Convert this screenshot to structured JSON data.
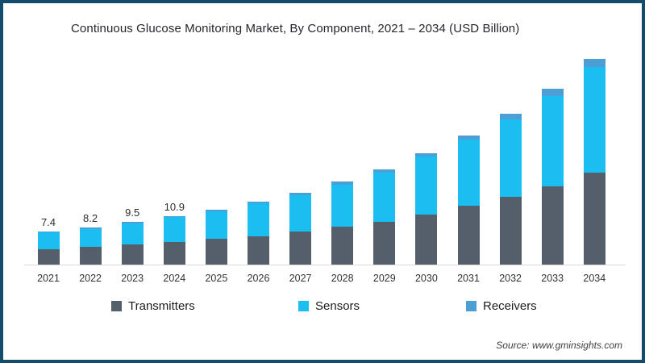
{
  "frame": {
    "border_color": "#134d6e",
    "background": "#ffffff"
  },
  "title": "Continuous Glucose Monitoring Market, By Component, 2021 – 2034 (USD Billion)",
  "source": "Source: www.gminsights.com",
  "chart_data": {
    "type": "bar",
    "stacked": true,
    "title": "Continuous Glucose Monitoring Market, By Component, 2021 – 2034 (USD Billion)",
    "unit": "USD Billion",
    "categories": [
      "2021",
      "2022",
      "2023",
      "2024",
      "2025",
      "2026",
      "2027",
      "2028",
      "2029",
      "2030",
      "2031",
      "2032",
      "2033",
      "2034"
    ],
    "series": [
      {
        "name": "Transmitters",
        "color": "#545f6b",
        "values": [
          3.5,
          3.9,
          4.5,
          5.0,
          5.7,
          6.3,
          7.4,
          8.4,
          9.6,
          11.1,
          13.1,
          15.2,
          17.4,
          20.6
        ]
      },
      {
        "name": "Sensors",
        "color": "#1bbef0",
        "values": [
          3.7,
          4.05,
          4.7,
          5.55,
          6.2,
          7.35,
          8.15,
          9.45,
          11.0,
          13.0,
          14.8,
          17.3,
          20.3,
          23.6
        ]
      },
      {
        "name": "Receivers",
        "color": "#4c9fd4",
        "values": [
          0.2,
          0.25,
          0.3,
          0.35,
          0.4,
          0.45,
          0.55,
          0.65,
          0.7,
          0.8,
          1.0,
          1.2,
          1.5,
          1.7
        ]
      }
    ],
    "totals": [
      7.4,
      8.2,
      9.5,
      10.9,
      12.3,
      14.1,
      16.1,
      18.5,
      21.3,
      24.9,
      28.9,
      33.7,
      39.2,
      45.9
    ],
    "value_labels": [
      "7.4",
      "8.2",
      "9.5",
      "10.9",
      "",
      "",
      "",
      "",
      "",
      "",
      "",
      "",
      "",
      ""
    ],
    "ylim": [
      0,
      46
    ],
    "grid": false,
    "legend_position": "bottom",
    "xlabel": "",
    "ylabel": ""
  }
}
